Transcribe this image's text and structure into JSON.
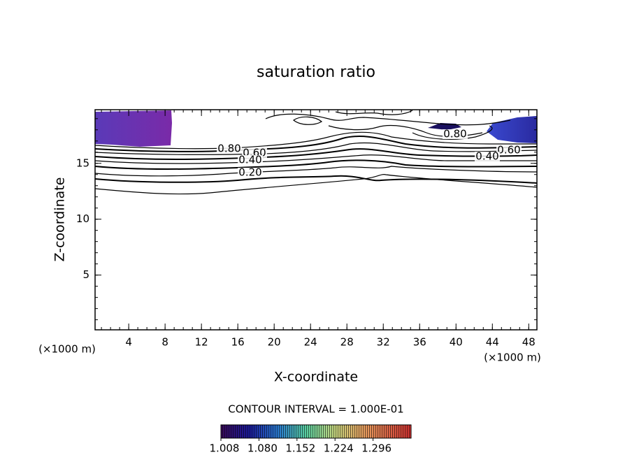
{
  "chart_data": {
    "type": "contour",
    "title": "saturation ratio",
    "x_label": "X-coordinate",
    "y_label": "Z-coordinate",
    "x_unit": "(×1000 m)",
    "y_unit": "(×1000 m)",
    "xlim": [
      0.3,
      48.9
    ],
    "ylim": [
      0.1,
      19.8
    ],
    "xticks": [
      4,
      8,
      12,
      16,
      20,
      24,
      28,
      32,
      36,
      40,
      44,
      48
    ],
    "yticks": [
      5,
      10,
      15
    ],
    "contour_labels": [
      {
        "value": 0.8,
        "label": "0.80"
      },
      {
        "value": 0.6,
        "label": "0.60"
      },
      {
        "value": 0.4,
        "label": "0.40"
      },
      {
        "value": 0.2,
        "label": "0.20"
      },
      {
        "value": 0.8,
        "label": "0.80"
      },
      {
        "value": 0.6,
        "label": "0.60"
      },
      {
        "value": 0.4,
        "label": "0.40"
      }
    ],
    "contour_interval_text": "CONTOUR INTERVAL = 1.000E-01",
    "colorbar": {
      "clim": [
        1.008,
        1.368
      ],
      "ticks": [
        {
          "value": 1.008,
          "label": "1.008"
        },
        {
          "value": 1.08,
          "label": "1.080"
        },
        {
          "value": 1.152,
          "label": "1.152"
        },
        {
          "value": 1.224,
          "label": "1.224"
        },
        {
          "value": 1.296,
          "label": "1.296"
        }
      ]
    }
  }
}
